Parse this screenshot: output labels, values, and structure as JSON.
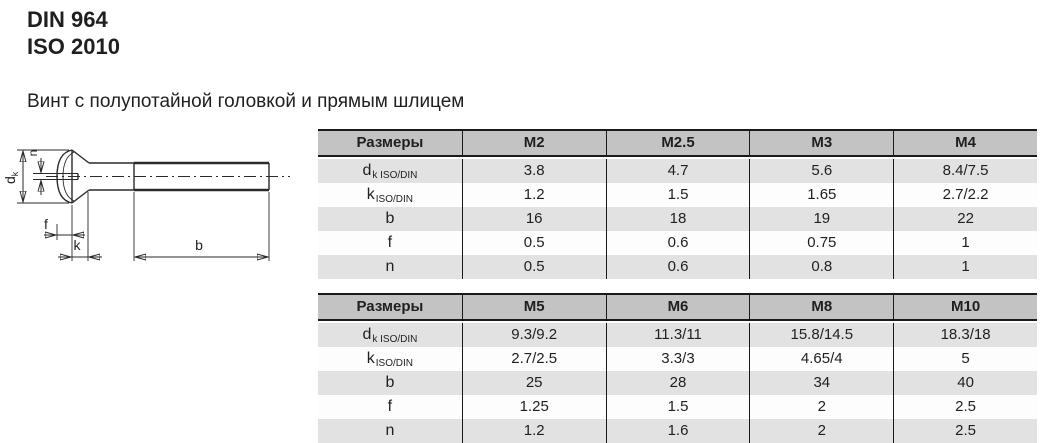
{
  "page": {
    "standard_din": "DIN 964",
    "standard_iso": "ISO 2010",
    "subtitle": "Винт с полупотайной головкой и прямым шлицем"
  },
  "drawing": {
    "description": "side view of raised countersunk (oval) head screw with straight slot",
    "labels": {
      "d_main": "d",
      "d_sub": "k",
      "n": "n",
      "f": "f",
      "k": "k",
      "b": "b"
    }
  },
  "tables": [
    {
      "headers": [
        "Размеры",
        "M2",
        "M2.5",
        "M3",
        "M4"
      ],
      "rows": [
        {
          "label_main": "d",
          "label_sub": "k ISO/DIN",
          "values": [
            "3.8",
            "4.7",
            "5.6",
            "8.4/7.5"
          ]
        },
        {
          "label_main": "k",
          "label_sub": "ISO/DIN",
          "values": [
            "1.2",
            "1.5",
            "1.65",
            "2.7/2.2"
          ]
        },
        {
          "label_main": "b",
          "label_sub": "",
          "values": [
            "16",
            "18",
            "19",
            "22"
          ]
        },
        {
          "label_main": "f",
          "label_sub": "",
          "values": [
            "0.5",
            "0.6",
            "0.75",
            "1"
          ]
        },
        {
          "label_main": "n",
          "label_sub": "",
          "values": [
            "0.5",
            "0.6",
            "0.8",
            "1"
          ]
        }
      ]
    },
    {
      "headers": [
        "Размеры",
        "M5",
        "M6",
        "M8",
        "M10"
      ],
      "rows": [
        {
          "label_main": "d",
          "label_sub": "k ISO/DIN",
          "values": [
            "9.3/9.2",
            "11.3/11",
            "15.8/14.5",
            "18.3/18"
          ]
        },
        {
          "label_main": "k",
          "label_sub": "ISO/DIN",
          "values": [
            "2.7/2.5",
            "3.3/3",
            "4.65/4",
            "5"
          ]
        },
        {
          "label_main": "b",
          "label_sub": "",
          "values": [
            "25",
            "28",
            "34",
            "40"
          ]
        },
        {
          "label_main": "f",
          "label_sub": "",
          "values": [
            "1.25",
            "1.5",
            "2",
            "2.5"
          ]
        },
        {
          "label_main": "n",
          "label_sub": "",
          "values": [
            "1.2",
            "1.6",
            "2",
            "2.5"
          ]
        }
      ]
    }
  ],
  "colors": {
    "header_bg": "#c3c3c3",
    "stripe_bg": "#e2e2e2",
    "border": "#1a1a1a",
    "text": "#1f1f1f"
  }
}
